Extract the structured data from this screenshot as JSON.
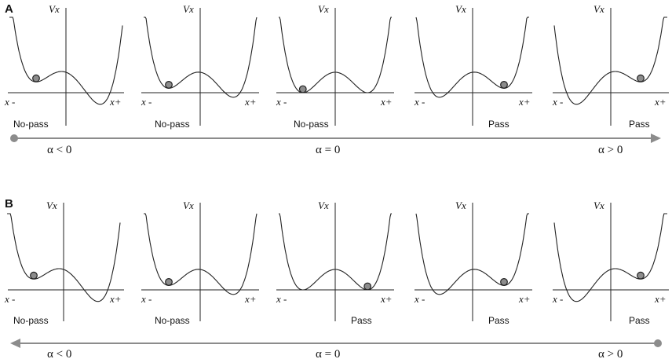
{
  "colors": {
    "arrow": "#8c8c8c",
    "ball": "#8c8c8c",
    "line": "#222222"
  },
  "rows": [
    {
      "letter": "A",
      "arrow_direction": "right",
      "alpha_labels": [
        "α < 0",
        "α = 0",
        "α > 0"
      ],
      "panels": [
        {
          "y_label": "Vx",
          "x_minus": "x -",
          "x_plus": "x+",
          "outcome": "No-pass",
          "tilt": -0.55,
          "ball": "left"
        },
        {
          "y_label": "Vx",
          "x_minus": "x -",
          "x_plus": "x+",
          "outcome": "No-pass",
          "tilt": -0.22,
          "ball": "left"
        },
        {
          "y_label": "Vx",
          "x_minus": "x -",
          "x_plus": "x+",
          "outcome": "No-pass",
          "tilt": 0.0,
          "ball": "left"
        },
        {
          "y_label": "Vx",
          "x_minus": "x -",
          "x_plus": "x+",
          "outcome": "Pass",
          "tilt": 0.22,
          "ball": "right"
        },
        {
          "y_label": "Vx",
          "x_minus": "x -",
          "x_plus": "x+",
          "outcome": "Pass",
          "tilt": 0.55,
          "ball": "right"
        }
      ]
    },
    {
      "letter": "B",
      "arrow_direction": "left",
      "alpha_labels": [
        "α < 0",
        "α = 0",
        "α > 0"
      ],
      "panels": [
        {
          "y_label": "Vx",
          "x_minus": "x -",
          "x_plus": "x+",
          "outcome": "No-pass",
          "tilt": -0.55,
          "ball": "left"
        },
        {
          "y_label": "Vx",
          "x_minus": "x -",
          "x_plus": "x+",
          "outcome": "No-pass",
          "tilt": -0.22,
          "ball": "left"
        },
        {
          "y_label": "Vx",
          "x_minus": "x -",
          "x_plus": "x+",
          "outcome": "Pass",
          "tilt": 0.0,
          "ball": "right"
        },
        {
          "y_label": "Vx",
          "x_minus": "x -",
          "x_plus": "x+",
          "outcome": "Pass",
          "tilt": 0.22,
          "ball": "right"
        },
        {
          "y_label": "Vx",
          "x_minus": "x -",
          "x_plus": "x+",
          "outcome": "Pass",
          "tilt": 0.55,
          "ball": "right"
        }
      ]
    }
  ]
}
